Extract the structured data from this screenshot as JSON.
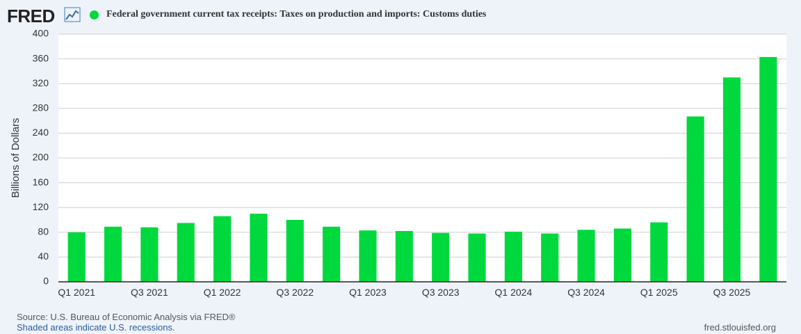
{
  "header": {
    "logo_text": "FRED",
    "series_title": "Federal government current tax receipts: Taxes on production and imports: Customs duties"
  },
  "footer": {
    "source": "Source: U.S. Bureau of Economic Analysis via FRED®",
    "recession_note": "Shaded areas indicate U.S. recessions.",
    "site": "fred.stlouisfed.org"
  },
  "colors": {
    "bar": "#00d93d",
    "grid": "#cfcfcf",
    "axis": "#222222",
    "plot_bg": "#ffffff"
  },
  "chart_data": {
    "type": "bar",
    "title": "Federal government current tax receipts: Taxes on production and imports: Customs duties",
    "xlabel": "",
    "ylabel": "Billions of Dollars",
    "ylim": [
      0,
      400
    ],
    "yticks": [
      0,
      40,
      80,
      120,
      160,
      200,
      240,
      280,
      320,
      360,
      400
    ],
    "grid": true,
    "categories": [
      "Q1 2021",
      "Q2 2021",
      "Q3 2021",
      "Q4 2021",
      "Q1 2022",
      "Q2 2022",
      "Q3 2022",
      "Q4 2022",
      "Q1 2023",
      "Q2 2023",
      "Q3 2023",
      "Q4 2023",
      "Q1 2024",
      "Q2 2024",
      "Q3 2024",
      "Q4 2024",
      "Q1 2025",
      "Q2 2025",
      "Q3 2025",
      "Q4 2025"
    ],
    "xtick_labels": [
      "Q1 2021",
      "",
      "Q3 2021",
      "",
      "Q1 2022",
      "",
      "Q3 2022",
      "",
      "Q1 2023",
      "",
      "Q3 2023",
      "",
      "Q1 2024",
      "",
      "Q3 2024",
      "",
      "Q1 2025",
      "",
      "Q3 2025",
      ""
    ],
    "series": [
      {
        "name": "Federal government current tax receipts: Taxes on production and imports: Customs duties",
        "values": [
          80,
          89,
          88,
          95,
          106,
          110,
          100,
          89,
          83,
          82,
          79,
          78,
          81,
          78,
          84,
          86,
          96,
          267,
          330,
          363
        ]
      }
    ]
  }
}
